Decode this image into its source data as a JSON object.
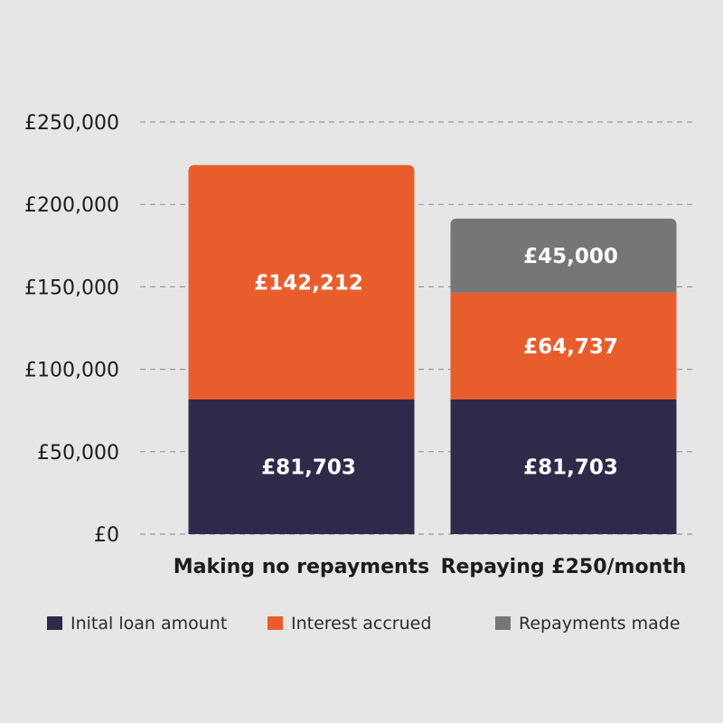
{
  "chart_data": {
    "type": "bar",
    "stacked": true,
    "categories": [
      "Making no repayments",
      "Repaying £250/month"
    ],
    "series": [
      {
        "name": "Inital loan amount",
        "values": [
          81703,
          81703
        ],
        "labels": [
          "£81,703",
          "£81,703"
        ],
        "color": "#2e2b4a"
      },
      {
        "name": "Interest accrued",
        "values": [
          142212,
          64737
        ],
        "labels": [
          "£142,212",
          "£64,737"
        ],
        "color": "#e95d2c"
      },
      {
        "name": "Repayments made",
        "values": [
          0,
          45000
        ],
        "labels": [
          "",
          "£45,000"
        ],
        "color": "#767676"
      }
    ],
    "yticks": [
      0,
      50000,
      100000,
      150000,
      200000,
      250000
    ],
    "ytick_labels": [
      "£0",
      "£50,000",
      "£100,000",
      "£150,000",
      "£200,000",
      "£250,000"
    ],
    "ylim": [
      0,
      250000
    ],
    "grid": true,
    "grid_color": "#9a9a9a",
    "legend_position": "bottom",
    "title": "",
    "xlabel": "",
    "ylabel": ""
  }
}
